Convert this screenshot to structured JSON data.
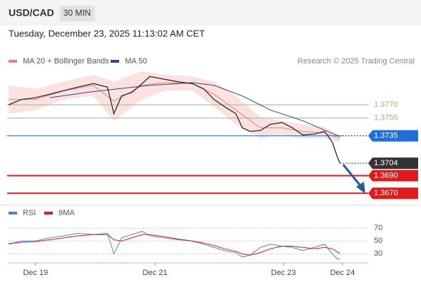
{
  "header": {
    "symbol": "USD/CAD",
    "timeframe": "30 MIN",
    "datetime": "Tuesday, December 23, 2025 11:13:02 AM CET"
  },
  "chart_data": [
    {
      "type": "line",
      "legend": [
        "MA 20 + Bollinger Bands",
        "MA 50"
      ],
      "legend_colors": [
        "#f08080",
        "#2d4a7a"
      ],
      "credit": "Research © 2025 Trading Central",
      "xlim": [
        0,
        280
      ],
      "ylim": [
        1.3663,
        1.382
      ],
      "price": {
        "color": "#2b2b2b",
        "x": [
          0,
          10,
          21,
          32,
          43,
          54,
          66,
          77,
          82,
          88,
          96,
          104,
          110,
          121,
          132,
          143,
          152,
          160,
          168,
          177,
          182,
          188,
          196,
          204,
          213,
          221,
          229,
          238,
          246,
          252,
          256,
          258
        ],
        "values": [
          1.377,
          1.3776,
          1.3778,
          1.3782,
          1.3786,
          1.379,
          1.3794,
          1.379,
          1.376,
          1.378,
          1.3784,
          1.3794,
          1.3802,
          1.3799,
          1.3796,
          1.3794,
          1.3788,
          1.3776,
          1.3768,
          1.376,
          1.3744,
          1.374,
          1.3741,
          1.3748,
          1.375,
          1.3744,
          1.3736,
          1.3737,
          1.374,
          1.3728,
          1.3711,
          1.3704
        ]
      },
      "bands": {
        "color": "#fbd9d9",
        "x": [
          0,
          21,
          43,
          66,
          82,
          104,
          121,
          143,
          160,
          177,
          196,
          213,
          229,
          246,
          258
        ],
        "upper": [
          1.3792,
          1.3788,
          1.3796,
          1.3804,
          1.3796,
          1.3808,
          1.3804,
          1.3802,
          1.3796,
          1.378,
          1.3756,
          1.3752,
          1.3748,
          1.3745,
          1.3736
        ],
        "lower": [
          1.376,
          1.3764,
          1.3776,
          1.378,
          1.3752,
          1.3776,
          1.3786,
          1.3786,
          1.3768,
          1.3748,
          1.3732,
          1.3736,
          1.3732,
          1.3732,
          1.3728
        ],
        "ma20": [
          1.3776,
          1.3776,
          1.3786,
          1.3792,
          1.3774,
          1.3792,
          1.3795,
          1.3794,
          1.3782,
          1.3764,
          1.3744,
          1.3744,
          1.374,
          1.3738,
          1.3732
        ]
      },
      "ma50": {
        "x": [
          32,
          66,
          110,
          143,
          160,
          182,
          204,
          229,
          258
        ],
        "values": [
          1.3778,
          1.3785,
          1.3792,
          1.3795,
          1.3792,
          1.378,
          1.3764,
          1.3752,
          1.3734
        ]
      },
      "levels": [
        {
          "value": 1.377,
          "label": "1.3770",
          "color": "#8dc26f",
          "line": "thin",
          "boxed": false
        },
        {
          "value": 1.3755,
          "label": "1.3755",
          "color": "#8dc26f",
          "line": "thin",
          "boxed": false
        },
        {
          "value": 1.3735,
          "label": "1.3735",
          "color": "#1e6fd9",
          "line": "thin",
          "boxed": true
        },
        {
          "value": 1.3704,
          "label": "1.3704",
          "color": "#333333",
          "line": "dotted",
          "boxed": true
        },
        {
          "value": 1.369,
          "label": "1.3690",
          "color": "#e31a1a",
          "line": "thick",
          "boxed": true
        },
        {
          "value": 1.367,
          "label": "1.3670",
          "color": "#e31a1a",
          "line": "thick",
          "boxed": true
        }
      ]
    },
    {
      "type": "line",
      "legend": [
        "RSI",
        "9MA"
      ],
      "xlim": [
        0,
        280
      ],
      "ylim": [
        17,
        78
      ],
      "yticks": [
        30,
        50,
        70
      ],
      "xticks": [
        {
          "value": 21,
          "label": "Dec 19"
        },
        {
          "value": 114,
          "label": "Dec 21"
        },
        {
          "value": 214,
          "label": "Dec 23"
        },
        {
          "value": 260,
          "label": "Dec 24"
        }
      ],
      "x": [
        0,
        10,
        21,
        32,
        43,
        54,
        66,
        77,
        82,
        88,
        96,
        104,
        110,
        121,
        132,
        143,
        152,
        160,
        168,
        177,
        182,
        188,
        196,
        204,
        213,
        221,
        229,
        238,
        246,
        252,
        256,
        258
      ],
      "series": [
        {
          "name": "RSI",
          "color": "#5b7fd6",
          "values": [
            45,
            50,
            50,
            55,
            58,
            62,
            60,
            62,
            30,
            55,
            60,
            65,
            58,
            55,
            52,
            50,
            45,
            40,
            35,
            32,
            25,
            28,
            40,
            45,
            42,
            40,
            35,
            40,
            45,
            30,
            22,
            22
          ]
        },
        {
          "name": "9MA",
          "color": "#e31a1a",
          "values": [
            46,
            48,
            49,
            52,
            55,
            58,
            60,
            60,
            52,
            50,
            55,
            60,
            60,
            57,
            53,
            50,
            47,
            43,
            38,
            34,
            30,
            28,
            32,
            38,
            42,
            42,
            40,
            38,
            40,
            38,
            33,
            30
          ]
        }
      ]
    }
  ]
}
